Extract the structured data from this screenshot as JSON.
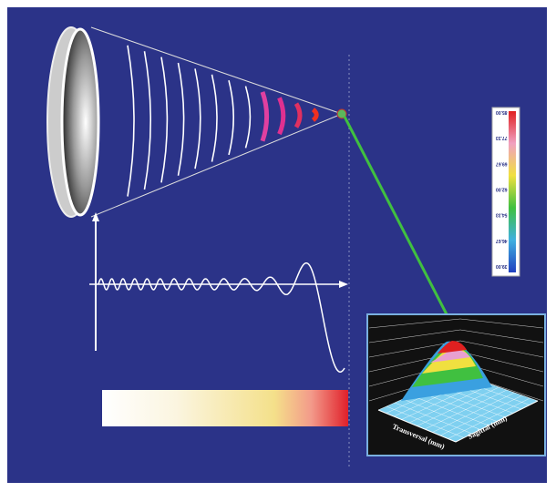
{
  "colorbar": {
    "labels": [
      "85.00",
      "77.33",
      "69.67",
      "62.00",
      "54.33",
      "46.67",
      "39.00"
    ]
  },
  "plot": {
    "x_label": "Transversal (mm)",
    "y_label": "Sagittal (mm)"
  }
}
